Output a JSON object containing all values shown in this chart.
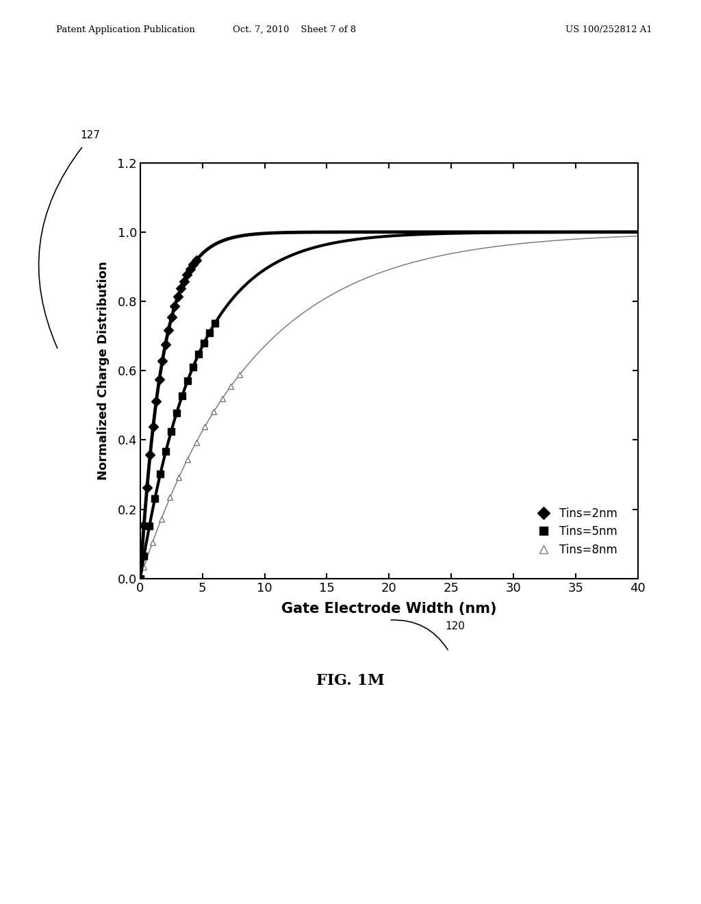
{
  "xlabel": "Gate Electrode Width (nm)",
  "ylabel": "Normalized Charge Distribution",
  "xlim": [
    0,
    40
  ],
  "ylim": [
    0,
    1.2
  ],
  "xticks": [
    0,
    5,
    10,
    15,
    20,
    25,
    30,
    35,
    40
  ],
  "yticks": [
    0,
    0.2,
    0.4,
    0.6,
    0.8,
    1.0,
    1.2
  ],
  "taus": {
    "2": 1.8,
    "5": 4.5,
    "8": 9.0
  },
  "header_left": "Patent Application Publication",
  "header_center": "Oct. 7, 2010    Sheet 7 of 8",
  "header_right": "US 100/252812 A1",
  "background_color": "#ffffff"
}
